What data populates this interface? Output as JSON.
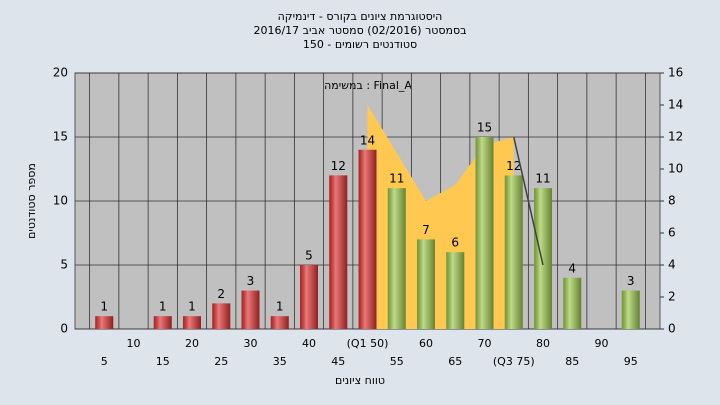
{
  "chart_data": {
    "type": "bar",
    "title": "היסטוגרמת ציונים בקורס - דינמיקה",
    "subtitle": "בסמסטר  (02/2016)  סמסטר אביב 2016/17",
    "subtitle2": "סטודנטים רשומים - 150",
    "annotation": "במשימה : Final_A",
    "x_label": "טווח ציונים",
    "y_label": "מספר סטודנטים",
    "categories": [
      "5",
      "10",
      "15",
      "20",
      "25",
      "30",
      "35",
      "40",
      "45",
      "(Q1 50)",
      "55",
      "60",
      "65",
      "70",
      "(Q3 75)",
      "80",
      "85",
      "90",
      "95"
    ],
    "values": [
      1,
      0,
      1,
      1,
      2,
      3,
      1,
      5,
      12,
      14,
      11,
      7,
      6,
      15,
      12,
      11,
      4,
      0,
      3
    ],
    "colors": [
      "#e03030",
      "#e03030",
      "#e03030",
      "#e03030",
      "#e03030",
      "#e03030",
      "#e03030",
      "#e03030",
      "#e03030",
      "#e03030",
      "#9cc84a",
      "#9cc84a",
      "#9cc84a",
      "#9cc84a",
      "#9cc84a",
      "#9cc84a",
      "#9cc84a",
      "#9cc84a",
      "#9cc84a"
    ],
    "area": {
      "axis": "y2",
      "color": "#ffc850",
      "values": [
        null,
        null,
        null,
        null,
        null,
        null,
        null,
        null,
        null,
        14,
        11,
        8,
        9,
        11.5,
        12,
        null,
        null,
        null,
        null
      ]
    },
    "line": {
      "axis": "y2",
      "color": "#404040",
      "values": [
        null,
        null,
        null,
        null,
        null,
        null,
        null,
        null,
        null,
        null,
        null,
        null,
        null,
        null,
        12,
        4,
        null,
        null,
        null
      ]
    },
    "ylim": [
      0,
      20
    ],
    "yticks": [
      0,
      5,
      10,
      15,
      20
    ],
    "y2lim": [
      0,
      16
    ],
    "y2ticks": [
      0,
      2,
      4,
      6,
      8,
      10,
      12,
      14,
      16
    ],
    "grid": true
  }
}
